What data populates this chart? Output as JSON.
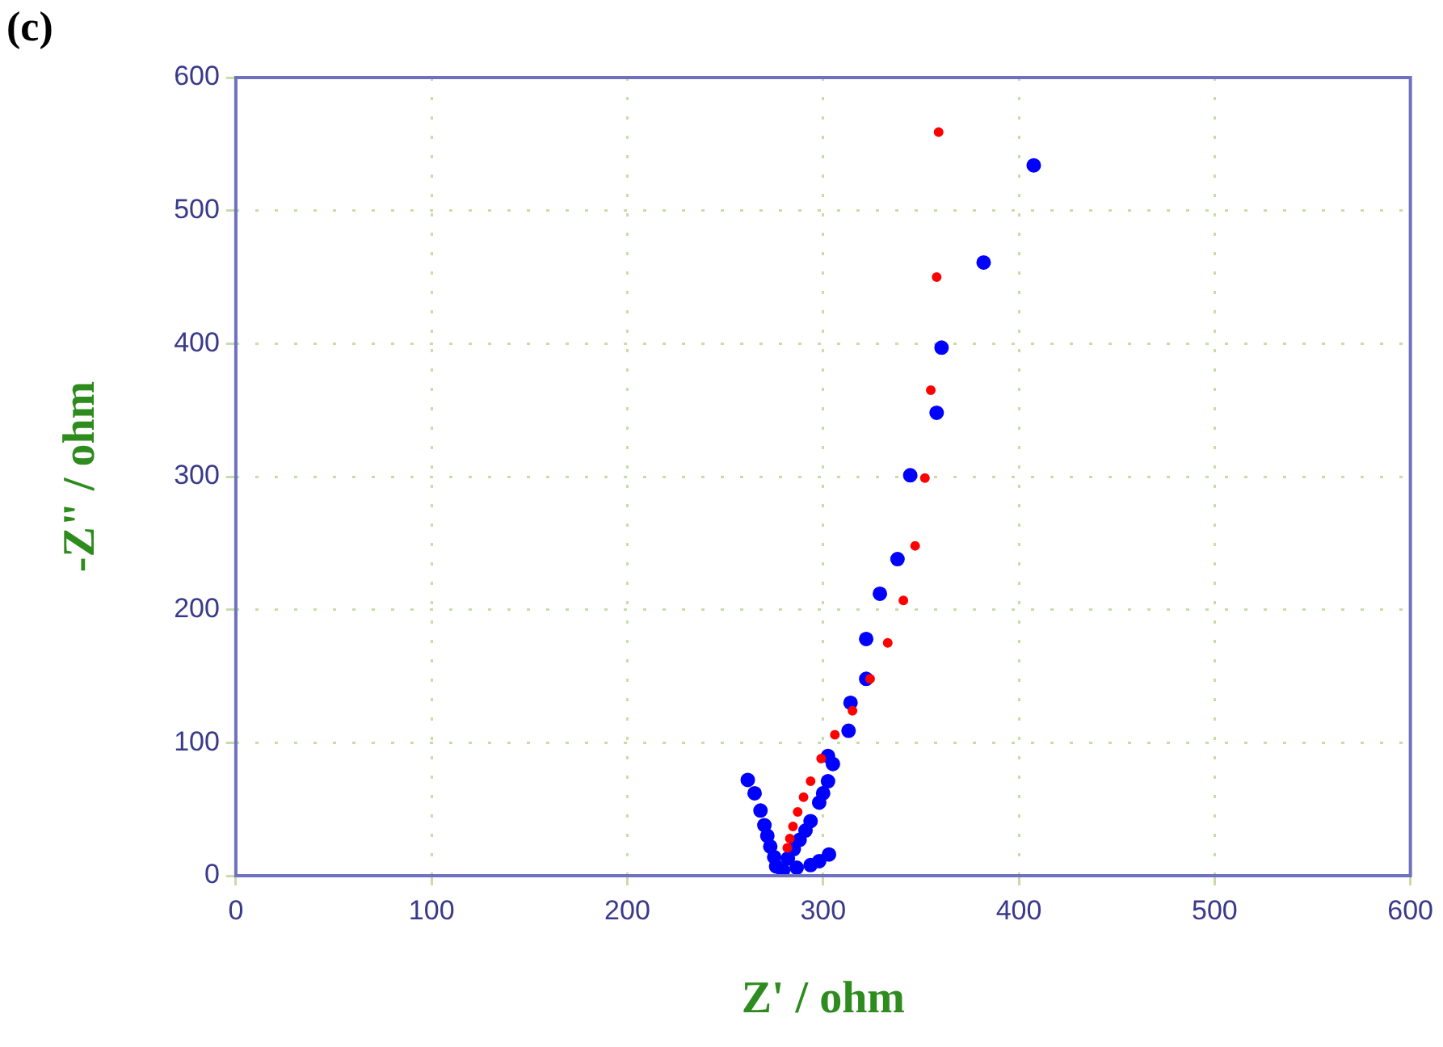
{
  "chart_data": {
    "type": "scatter",
    "title": "(c)",
    "xlabel": "Z' / ohm",
    "ylabel": "-Z\" / ohm",
    "xlim": [
      0,
      600
    ],
    "xticks": [
      0,
      100,
      200,
      300,
      400,
      500,
      600
    ],
    "ylim": [
      0,
      600
    ],
    "yticks": [
      0,
      100,
      200,
      300,
      400,
      500,
      600
    ],
    "grid": true,
    "marker": "circle",
    "series": [
      {
        "color": "#0000ff",
        "x": [
          407.6,
          382,
          360.5,
          358,
          344.5,
          338,
          329,
          322,
          322,
          314,
          313,
          305,
          302.5,
          302.5,
          300,
          298,
          293.6,
          291,
          288,
          285,
          282,
          303,
          298,
          293.6,
          286.5,
          279.5,
          261.5,
          265,
          268,
          270,
          271.5,
          273,
          275,
          276
        ],
        "values": [
          534,
          461,
          397,
          348,
          301,
          238,
          212,
          178,
          148,
          130,
          109,
          84,
          90,
          71,
          62,
          55,
          41,
          34,
          27,
          20,
          13,
          16,
          11,
          8,
          6,
          4,
          72,
          62,
          49,
          38,
          30,
          22,
          14,
          7
        ]
      },
      {
        "color": "#ff0000",
        "x": [
          359,
          358,
          355,
          352,
          347,
          341,
          333,
          324,
          315,
          306,
          299,
          293.6,
          290,
          287,
          284.6,
          283,
          281.7
        ],
        "values": [
          559,
          450,
          365,
          299,
          248,
          207,
          175,
          148,
          124,
          106,
          88,
          71,
          59,
          48,
          37,
          28,
          21
        ]
      }
    ]
  }
}
